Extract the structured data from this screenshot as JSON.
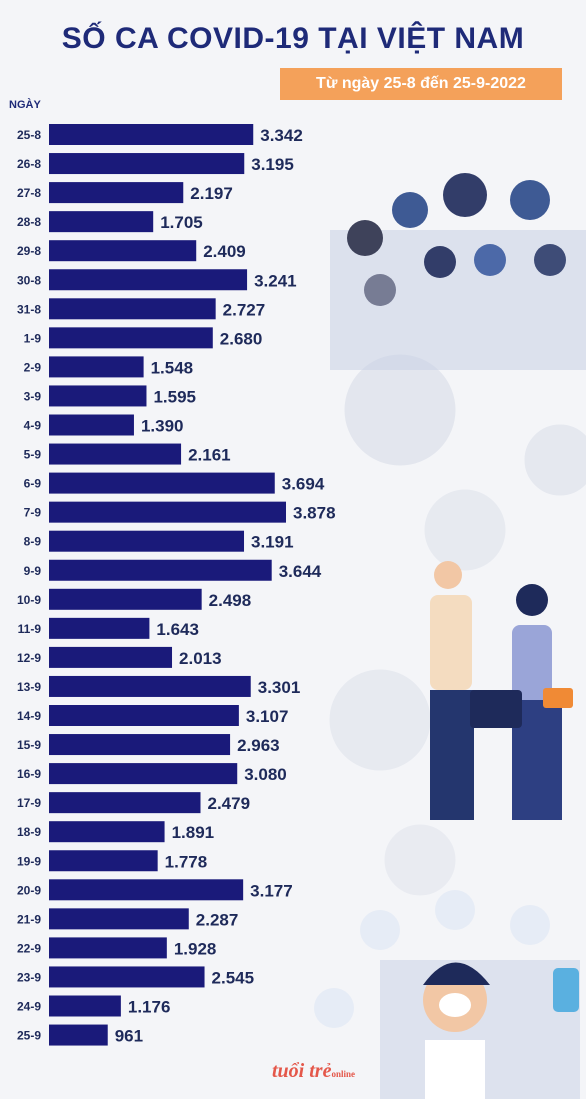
{
  "title": "SỐ CA COVID-19 TẠI VIỆT NAM",
  "subtitle": "Từ ngày 25-8 đến 25-9-2022",
  "logo_text": "tuổi trẻ",
  "logo_sub": "online",
  "colors": {
    "bar": "#1a1a7a",
    "title": "#1e2a78",
    "subtitle_bg": "#f4a15a",
    "background": "#f4f5f8"
  },
  "chart_data": {
    "type": "bar",
    "orientation": "horizontal",
    "ylabel": "NGÀY",
    "categories": [
      "25-8",
      "26-8",
      "27-8",
      "28-8",
      "29-8",
      "30-8",
      "31-8",
      "1-9",
      "2-9",
      "3-9",
      "4-9",
      "5-9",
      "6-9",
      "7-9",
      "8-9",
      "9-9",
      "10-9",
      "11-9",
      "12-9",
      "13-9",
      "14-9",
      "15-9",
      "16-9",
      "17-9",
      "18-9",
      "19-9",
      "20-9",
      "21-9",
      "22-9",
      "23-9",
      "24-9",
      "25-9"
    ],
    "values": [
      3342,
      3195,
      2197,
      1705,
      2409,
      3241,
      2727,
      2680,
      1548,
      1595,
      1390,
      2161,
      3694,
      3878,
      3191,
      3644,
      2498,
      1643,
      2013,
      3301,
      3107,
      2963,
      3080,
      2479,
      1891,
      1778,
      3177,
      2287,
      1928,
      2545,
      1176,
      961
    ],
    "value_labels": [
      "3.342",
      "3.195",
      "2.197",
      "1.705",
      "2.409",
      "3.241",
      "2.727",
      "2.680",
      "1.548",
      "1.595",
      "1.390",
      "2.161",
      "3.694",
      "3.878",
      "3.191",
      "3.644",
      "2.498",
      "1.643",
      "2.013",
      "3.301",
      "3.107",
      "2.963",
      "3.080",
      "2.479",
      "1.891",
      "1.778",
      "3.177",
      "2.287",
      "1.928",
      "2.545",
      "1.176",
      "961"
    ]
  }
}
